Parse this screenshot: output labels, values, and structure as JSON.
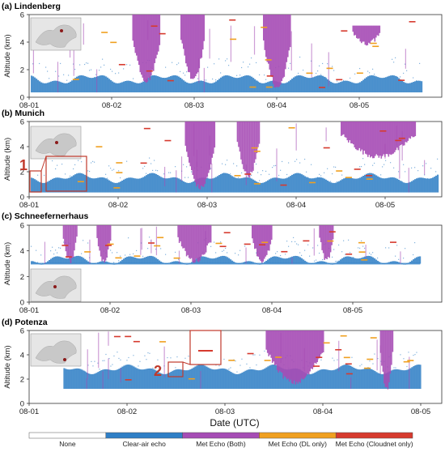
{
  "chart_data": [
    {
      "type": "heatmap",
      "title": "(a) Lindenberg",
      "ylabel": "Altitude (km)",
      "ylim": [
        0,
        6
      ],
      "yticks": [
        "0",
        "2",
        "4",
        "6"
      ],
      "xticks": [
        "08-01",
        "08-02",
        "08-03",
        "08-04",
        "08-05"
      ],
      "x_start": "08-01",
      "x_end": "08-05 18:00",
      "met_columns": [
        {
          "from": "08-02 06:00",
          "to": "08-02 14:00",
          "top": 6.0,
          "bottom": 1.0
        },
        {
          "from": "08-02 20:00",
          "to": "08-03 03:00",
          "top": 6.0,
          "bottom": 1.2
        },
        {
          "from": "08-03 20:00",
          "to": "08-04 04:00",
          "top": 6.0,
          "bottom": 0.5
        },
        {
          "from": "08-04 22:00",
          "to": "08-05 06:00",
          "top": 5.2,
          "bottom": 3.6
        }
      ],
      "clear_air_top_km": 1.3
    },
    {
      "type": "heatmap",
      "title": "(b) Munich",
      "ylabel": "Altitude (km)",
      "ylim": [
        0,
        6
      ],
      "yticks": [
        "0",
        "2",
        "4",
        "6"
      ],
      "xticks": [
        "08-01",
        "08-02",
        "08-03",
        "08-04",
        "08-05"
      ],
      "x_start": "08-01",
      "x_end": "08-05 20:00",
      "annotation": "1",
      "met_columns": [
        {
          "from": "08-02 18:00",
          "to": "08-03 02:00",
          "top": 6.0,
          "bottom": 0.5
        },
        {
          "from": "08-03 08:00",
          "to": "08-03 14:00",
          "top": 6.0,
          "bottom": 1.5
        },
        {
          "from": "08-04 12:00",
          "to": "08-05 08:00",
          "top": 6.0,
          "bottom": 3.0
        }
      ],
      "clear_air_top_km": 1.5
    },
    {
      "type": "heatmap",
      "title": "(c) Schneefernerhaus",
      "ylabel": "Altitude (km)",
      "ylim": [
        0,
        6
      ],
      "yticks": [
        "0",
        "2",
        "4",
        "6"
      ],
      "xticks": [
        "08-01",
        "08-02",
        "08-03",
        "08-04",
        "08-05"
      ],
      "x_start": "08-01",
      "x_end": "08-05 20:00",
      "ground_km": 3.0,
      "met_columns": [
        {
          "from": "08-01 10:00",
          "to": "08-01 14:00",
          "top": 6.0,
          "bottom": 3.0
        },
        {
          "from": "08-01 20:00",
          "to": "08-02 00:00",
          "top": 6.0,
          "bottom": 3.0
        },
        {
          "from": "08-02 20:00",
          "to": "08-03 06:00",
          "top": 6.0,
          "bottom": 3.0
        },
        {
          "from": "08-03 18:00",
          "to": "08-04 00:00",
          "top": 6.0,
          "bottom": 3.0
        },
        {
          "from": "08-04 14:00",
          "to": "08-04 18:00",
          "top": 6.0,
          "bottom": 3.0
        }
      ]
    },
    {
      "type": "heatmap",
      "title": "(d) Potenza",
      "ylabel": "Altitude (km)",
      "ylim": [
        0,
        6
      ],
      "yticks": [
        "0",
        "2",
        "4",
        "6"
      ],
      "xticks": [
        "08-01",
        "08-02",
        "08-03",
        "08-04",
        "08-05"
      ],
      "x_start": "08-01",
      "x_end": "08-05",
      "annotation": "2",
      "met_columns": [
        {
          "from": "08-03 10:00",
          "to": "08-04 00:00",
          "top": 6.0,
          "bottom": 1.5
        },
        {
          "from": "08-04 14:00",
          "to": "08-04 17:00",
          "top": 6.0,
          "bottom": 1.0
        }
      ],
      "clear_air_top_km": 2.8,
      "clear_air_bottom_km": 1.2
    }
  ],
  "shared": {
    "xlabel": "Date (UTC)"
  },
  "legend": [
    {
      "label": "None",
      "color": "#ffffff"
    },
    {
      "label": "Clear-air echo",
      "color": "#2f7fc6"
    },
    {
      "label": "Met Echo (Both)",
      "color": "#a64db5"
    },
    {
      "label": "Met Echo (DL only)",
      "color": "#f0a020"
    },
    {
      "label": "Met Echo (Cloudnet only)",
      "color": "#d63a2e"
    }
  ],
  "colors": {
    "clear": "#2f7fc6",
    "met": "#a64db5",
    "dl": "#f0a020",
    "cloudnet": "#d63a2e",
    "annotation": "#c0392b",
    "map": "#c8c8c8"
  }
}
